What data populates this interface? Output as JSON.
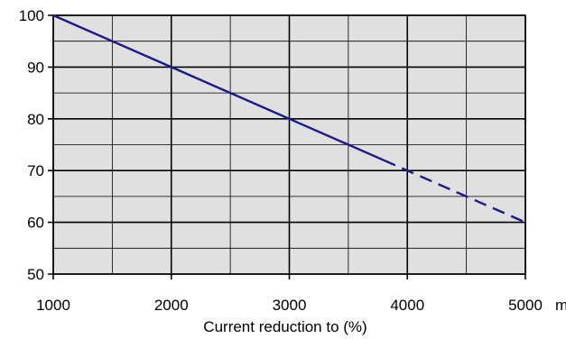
{
  "chart_data": {
    "type": "line",
    "title": "",
    "xlabel": "Current reduction to (%)",
    "x_unit": "m",
    "ylabel": "",
    "xlim": [
      1000,
      5000
    ],
    "ylim": [
      50,
      100
    ],
    "x_ticks": [
      1000,
      2000,
      3000,
      4000,
      5000
    ],
    "y_ticks": [
      50,
      60,
      70,
      80,
      90,
      100
    ],
    "x_minor_step": 500,
    "y_minor_step": 5,
    "grid": true,
    "background": "#e0e0e0",
    "line_color": "#1a1a8c",
    "series": [
      {
        "style": "solid",
        "x": [
          1000,
          2000,
          3000,
          3800
        ],
        "y": [
          100,
          90,
          80,
          72
        ]
      },
      {
        "style": "dashed",
        "x": [
          3800,
          4000,
          5000
        ],
        "y": [
          72,
          70,
          60
        ]
      }
    ]
  }
}
